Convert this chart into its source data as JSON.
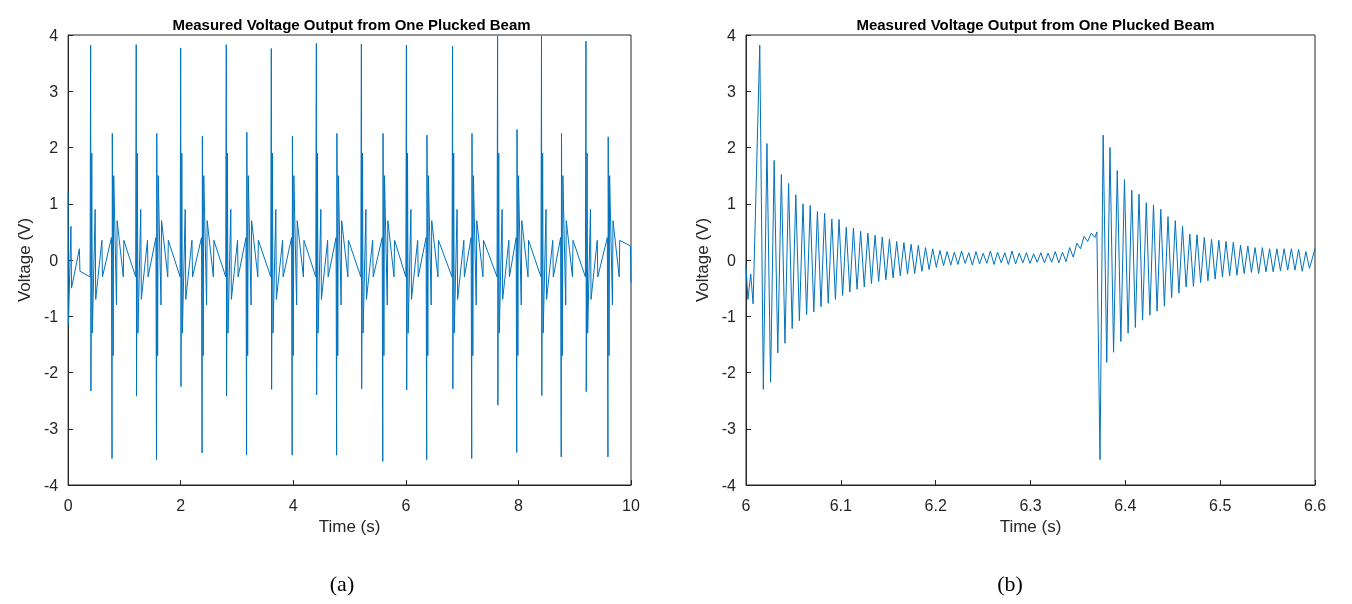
{
  "chart_data": [
    {
      "type": "line",
      "title": "Measured Voltage Output from One Plucked Beam",
      "xlabel": "Time (s)",
      "ylabel": "Voltage (V)",
      "annotations": [
        "(a)"
      ],
      "color": "#0072bd",
      "xlim": [
        0,
        10
      ],
      "ylim": [
        -4,
        4
      ],
      "xticks": [
        0,
        2,
        4,
        6,
        8,
        10
      ],
      "yticks": [
        -4,
        -3,
        -2,
        -1,
        0,
        1,
        2,
        3,
        4
      ],
      "grid": false,
      "x": [
        0,
        0.005,
        0.05,
        0.06,
        0.2,
        0.21,
        0.39,
        0.4,
        0.405,
        0.42,
        0.43,
        0.48,
        0.49,
        0.6,
        0.61,
        0.77,
        0.78,
        0.785,
        0.8,
        0.81,
        0.86,
        0.87,
        0.98,
        0.99,
        1.2,
        1.21,
        1.215,
        1.23,
        1.24,
        1.29,
        1.3,
        1.41,
        1.42,
        1.56,
        1.57,
        1.575,
        1.59,
        1.6,
        1.65,
        1.66,
        1.77,
        1.78,
        1.99,
        2.0,
        2.005,
        2.02,
        2.03,
        2.08,
        2.09,
        2.2,
        2.21,
        2.37,
        2.38,
        2.385,
        2.4,
        2.41,
        2.46,
        2.47,
        2.58,
        2.59,
        2.8,
        2.81,
        2.815,
        2.83,
        2.84,
        2.89,
        2.9,
        3.01,
        3.02,
        3.16,
        3.17,
        3.175,
        3.19,
        3.2,
        3.25,
        3.26,
        3.37,
        3.38,
        3.6,
        3.61,
        3.615,
        3.63,
        3.64,
        3.69,
        3.7,
        3.81,
        3.82,
        3.97,
        3.98,
        3.985,
        4.0,
        4.01,
        4.06,
        4.07,
        4.18,
        4.19,
        4.4,
        4.41,
        4.415,
        4.43,
        4.44,
        4.49,
        4.5,
        4.61,
        4.62,
        4.76,
        4.77,
        4.775,
        4.79,
        4.8,
        4.85,
        4.86,
        4.97,
        4.98,
        5.2,
        5.21,
        5.215,
        5.23,
        5.24,
        5.29,
        5.3,
        5.41,
        5.42,
        5.58,
        5.59,
        5.595,
        5.61,
        5.62,
        5.67,
        5.68,
        5.79,
        5.8,
        6.0,
        6.01,
        6.015,
        6.03,
        6.04,
        6.09,
        6.1,
        6.21,
        6.22,
        6.36,
        6.37,
        6.375,
        6.39,
        6.4,
        6.45,
        6.46,
        6.57,
        6.58,
        6.82,
        6.83,
        6.835,
        6.85,
        6.86,
        6.91,
        6.92,
        7.03,
        7.04,
        7.16,
        7.17,
        7.175,
        7.19,
        7.2,
        7.25,
        7.26,
        7.37,
        7.38,
        7.62,
        7.63,
        7.635,
        7.65,
        7.66,
        7.71,
        7.72,
        7.83,
        7.84,
        7.96,
        7.97,
        7.975,
        7.99,
        8.0,
        8.05,
        8.06,
        8.17,
        8.18,
        8.4,
        8.41,
        8.415,
        8.43,
        8.44,
        8.49,
        8.5,
        8.61,
        8.62,
        8.75,
        8.76,
        8.765,
        8.78,
        8.79,
        8.84,
        8.85,
        8.96,
        8.97,
        9.19,
        9.2,
        9.205,
        9.22,
        9.23,
        9.28,
        9.29,
        9.4,
        9.41,
        9.58,
        9.59,
        9.595,
        9.61,
        9.62,
        9.67,
        9.68,
        9.79,
        9.8,
        9.99,
        10
      ],
      "values": [
        1.2,
        -1.15,
        0.6,
        -0.5,
        0.2,
        -0.2,
        -0.3,
        3.82,
        -2.33,
        1.9,
        -1.3,
        0.9,
        -0.7,
        0.35,
        -0.3,
        0.4,
        -3.53,
        2.25,
        -1.7,
        1.5,
        -0.8,
        0.7,
        -0.3,
        0.35,
        -0.3,
        3.83,
        -2.42,
        1.9,
        -1.3,
        0.9,
        -0.7,
        0.35,
        -0.3,
        0.4,
        -3.55,
        2.25,
        -1.7,
        1.5,
        -0.8,
        0.7,
        -0.3,
        0.35,
        -0.3,
        3.77,
        -2.25,
        1.9,
        -1.3,
        0.9,
        -0.7,
        0.35,
        -0.3,
        0.4,
        -3.43,
        2.2,
        -1.7,
        1.5,
        -0.8,
        0.7,
        -0.3,
        0.35,
        -0.3,
        3.83,
        -2.42,
        1.9,
        -1.3,
        0.9,
        -0.7,
        0.35,
        -0.3,
        0.4,
        -3.47,
        2.27,
        -1.7,
        1.5,
        -0.8,
        0.7,
        -0.3,
        0.35,
        -0.3,
        3.76,
        -2.3,
        1.9,
        -1.3,
        0.9,
        -0.7,
        0.35,
        -0.3,
        0.4,
        -3.47,
        2.2,
        -1.7,
        1.5,
        -0.8,
        0.7,
        -0.3,
        0.35,
        -0.3,
        3.85,
        -2.4,
        1.9,
        -1.3,
        0.9,
        -0.7,
        0.35,
        -0.3,
        0.4,
        -3.47,
        2.25,
        -1.7,
        1.5,
        -0.8,
        0.7,
        -0.3,
        0.35,
        -0.3,
        3.84,
        -2.29,
        1.9,
        -1.3,
        0.9,
        -0.7,
        0.35,
        -0.3,
        0.4,
        -3.58,
        2.25,
        -1.7,
        1.5,
        -0.8,
        0.7,
        -0.3,
        0.35,
        -0.3,
        3.82,
        -2.31,
        1.9,
        -1.3,
        0.9,
        -0.7,
        0.35,
        -0.3,
        0.4,
        -3.55,
        2.22,
        -1.7,
        1.5,
        -0.8,
        0.7,
        -0.3,
        0.35,
        -0.3,
        3.8,
        -2.29,
        1.9,
        -1.3,
        0.9,
        -0.7,
        0.35,
        -0.3,
        0.4,
        -3.53,
        2.25,
        -1.7,
        1.5,
        -0.8,
        0.7,
        -0.3,
        0.35,
        -0.3,
        3.98,
        -2.58,
        1.9,
        -1.3,
        0.9,
        -0.7,
        0.35,
        -0.3,
        0.4,
        -3.42,
        2.32,
        -1.7,
        1.5,
        -0.8,
        0.7,
        -0.3,
        0.35,
        -0.3,
        3.98,
        -2.41,
        1.9,
        -1.3,
        0.9,
        -0.7,
        0.35,
        -0.3,
        0.4,
        -3.5,
        2.25,
        -1.7,
        1.5,
        -0.8,
        0.7,
        -0.3,
        0.35,
        -0.3,
        3.89,
        -2.34,
        1.9,
        -1.3,
        0.9,
        -0.7,
        0.35,
        -0.3,
        0.4,
        -3.5,
        2.19,
        -1.7,
        1.5,
        -0.8,
        0.7,
        -0.3,
        0.35,
        0.25,
        -0.4
      ]
    },
    {
      "type": "line",
      "title": "Measured Voltage Output from One Plucked Beam",
      "xlabel": "Time (s)",
      "ylabel": "Voltage (V)",
      "annotations": [
        "(b)"
      ],
      "color": "#0072bd",
      "xlim": [
        6,
        6.6
      ],
      "ylim": [
        -4,
        4
      ],
      "xticks": [
        6,
        6.1,
        6.2,
        6.3,
        6.4,
        6.5,
        6.6
      ],
      "yticks": [
        -4,
        -3,
        -2,
        -1,
        0,
        1,
        2,
        3,
        4
      ],
      "grid": false,
      "x": [
        6.0,
        6.002,
        6.005,
        6.0075,
        6.0145,
        6.0183,
        6.0221,
        6.0259,
        6.0297,
        6.0335,
        6.0373,
        6.0411,
        6.0449,
        6.0487,
        6.0525,
        6.0563,
        6.0601,
        6.0639,
        6.0677,
        6.0715,
        6.0753,
        6.0791,
        6.0829,
        6.0867,
        6.0905,
        6.0943,
        6.0981,
        6.1019,
        6.1057,
        6.1095,
        6.1133,
        6.1171,
        6.1209,
        6.1247,
        6.1285,
        6.1323,
        6.1361,
        6.1399,
        6.1437,
        6.1475,
        6.1513,
        6.1551,
        6.1589,
        6.1627,
        6.1665,
        6.1703,
        6.1741,
        6.1779,
        6.1817,
        6.1855,
        6.1893,
        6.1931,
        6.1969,
        6.2007,
        6.2045,
        6.2083,
        6.2121,
        6.2159,
        6.2197,
        6.2235,
        6.2273,
        6.2311,
        6.2349,
        6.2387,
        6.2425,
        6.2463,
        6.2501,
        6.2539,
        6.2577,
        6.2615,
        6.2653,
        6.2691,
        6.2729,
        6.2767,
        6.2805,
        6.2843,
        6.2881,
        6.2919,
        6.2957,
        6.2995,
        6.3033,
        6.3071,
        6.3109,
        6.3147,
        6.3185,
        6.3223,
        6.3261,
        6.3299,
        6.3337,
        6.3375,
        6.3413,
        6.3451,
        6.3489,
        6.3527,
        6.3565,
        6.3603,
        6.3641,
        6.3679,
        6.37,
        6.3733,
        6.3766,
        6.3804,
        6.3838,
        6.3876,
        6.3915,
        6.3953,
        6.3991,
        6.4029,
        6.4068,
        6.4106,
        6.4144,
        6.4182,
        6.4221,
        6.4259,
        6.4297,
        6.4335,
        6.4374,
        6.4412,
        6.445,
        6.4488,
        6.4527,
        6.4565,
        6.4603,
        6.4641,
        6.468,
        6.4718,
        6.4756,
        6.4794,
        6.4833,
        6.4871,
        6.4909,
        6.4947,
        6.4986,
        6.5024,
        6.5062,
        6.51,
        6.5139,
        6.5177,
        6.5215,
        6.5253,
        6.5292,
        6.533,
        6.5368,
        6.5406,
        6.5445,
        6.5483,
        6.5521,
        6.5559,
        6.5598,
        6.5636,
        6.5674,
        6.5712,
        6.5751,
        6.5789,
        6.5827,
        6.5865,
        6.5904,
        6.5942,
        6.6
      ],
      "values": [
        -0.1,
        -0.7,
        -0.25,
        -0.78,
        3.82,
        -2.3,
        2.07,
        -2.17,
        1.77,
        -1.65,
        1.52,
        -1.48,
        1.36,
        -1.22,
        1.16,
        -1.08,
        1.0,
        -0.97,
        0.97,
        -0.92,
        0.86,
        -0.83,
        0.83,
        -0.77,
        0.73,
        -0.7,
        0.72,
        -0.63,
        0.58,
        -0.57,
        0.57,
        -0.52,
        0.51,
        -0.48,
        0.48,
        -0.42,
        0.44,
        -0.38,
        0.41,
        -0.35,
        0.37,
        -0.32,
        0.33,
        -0.28,
        0.31,
        -0.25,
        0.28,
        -0.24,
        0.26,
        -0.2,
        0.22,
        -0.17,
        0.2,
        -0.13,
        0.17,
        -0.1,
        0.15,
        -0.09,
        0.14,
        -0.08,
        0.16,
        -0.06,
        0.13,
        -0.09,
        0.15,
        -0.07,
        0.12,
        -0.06,
        0.16,
        -0.08,
        0.14,
        -0.05,
        0.13,
        -0.08,
        0.16,
        -0.07,
        0.12,
        -0.05,
        0.13,
        -0.06,
        0.11,
        -0.04,
        0.13,
        -0.05,
        0.12,
        -0.04,
        0.15,
        -0.05,
        0.14,
        -0.03,
        0.22,
        0.05,
        0.3,
        0.2,
        0.42,
        0.33,
        0.48,
        0.4,
        0.5,
        -3.55,
        2.22,
        -1.82,
        2.0,
        -1.64,
        1.59,
        -1.45,
        1.43,
        -1.3,
        1.24,
        -1.2,
        1.17,
        -1.07,
        1.02,
        -0.98,
        0.98,
        -0.91,
        0.9,
        -0.82,
        0.77,
        -0.67,
        0.7,
        -0.59,
        0.6,
        -0.48,
        0.46,
        -0.47,
        0.45,
        -0.4,
        0.4,
        -0.37,
        0.37,
        -0.34,
        0.35,
        -0.3,
        0.33,
        -0.28,
        0.32,
        -0.27,
        0.26,
        -0.24,
        0.25,
        -0.22,
        0.22,
        -0.24,
        0.22,
        -0.21,
        0.2,
        -0.21,
        0.2,
        -0.19,
        0.2,
        -0.18,
        0.2,
        -0.18,
        0.19,
        -0.2,
        0.15,
        -0.15,
        0.2
      ]
    }
  ]
}
